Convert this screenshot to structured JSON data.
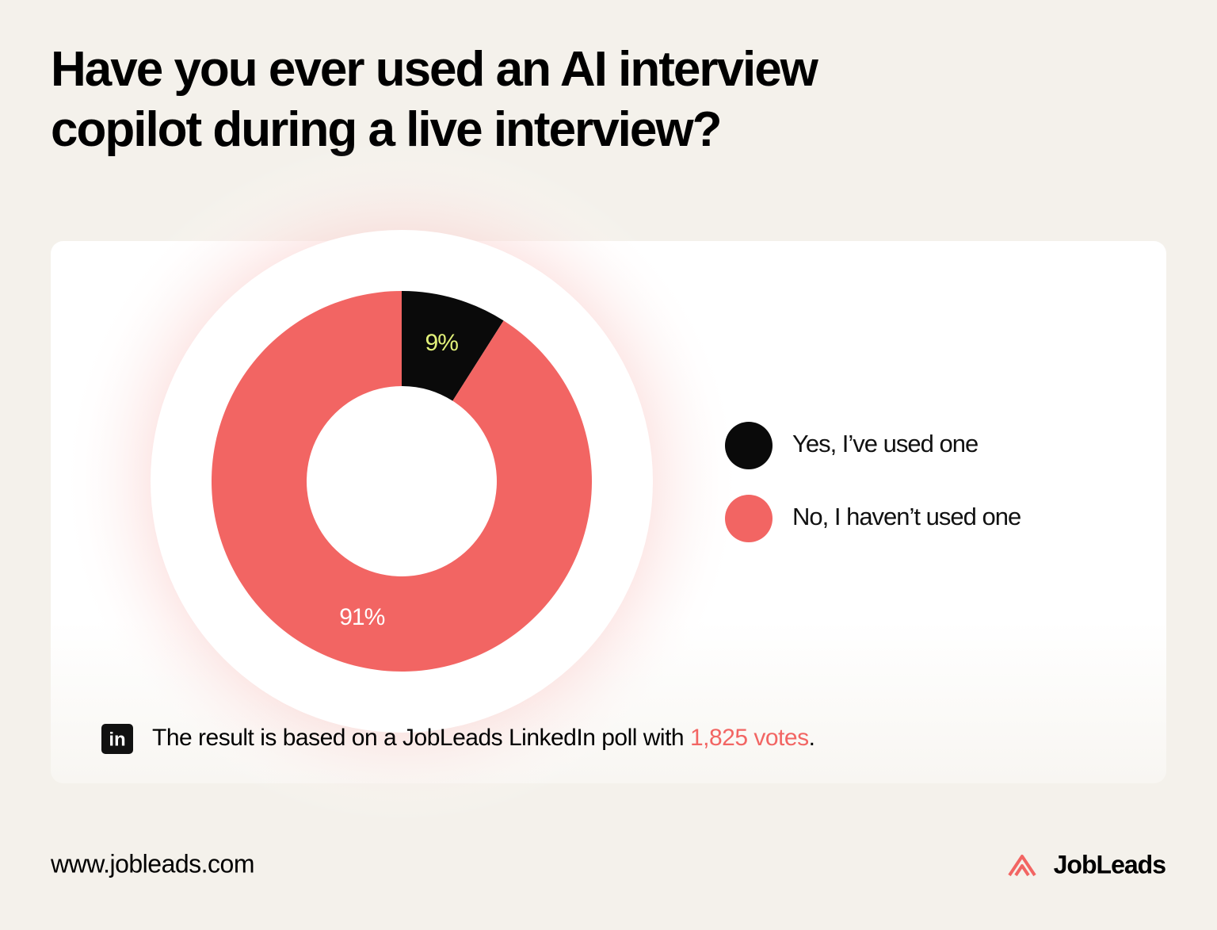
{
  "chart_data": {
    "type": "donut",
    "title": "Have you ever used an AI interview copilot during a live interview?",
    "categories": [
      "Yes, I’ve used one",
      "No, I haven’t used one"
    ],
    "values": [
      9,
      91
    ],
    "value_labels": [
      "9%",
      "91%"
    ],
    "colors": [
      "#0a0a0a",
      "#f26563"
    ],
    "label_colors": [
      "#e3f27a",
      "#ffffff"
    ],
    "legend": "right"
  },
  "note": {
    "icon": "in",
    "text": "The result is based on a JobLeads LinkedIn poll with",
    "highlight": "1,825 votes",
    "end": "."
  },
  "footer": {
    "url": "www.jobleads.com",
    "brand": "JobLeads"
  }
}
